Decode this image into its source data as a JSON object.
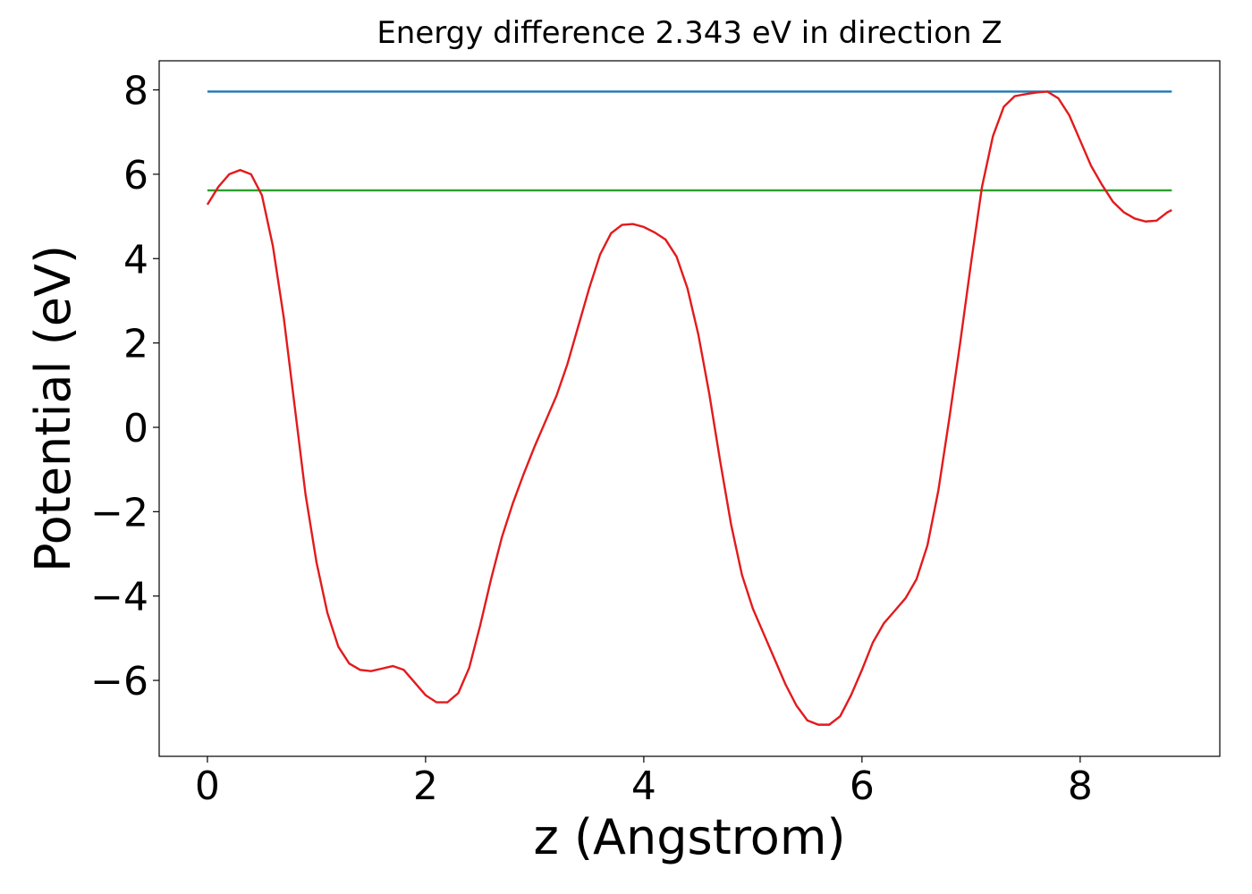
{
  "chart_data": {
    "type": "line",
    "title": "Energy difference 2.343 eV in direction Z",
    "x_label": "z (Angstrom)",
    "y_label": "Potential (eV)",
    "xlim": [
      -0.442,
      9.28
    ],
    "ylim": [
      -7.8,
      8.69
    ],
    "xticks": [
      0,
      2,
      4,
      6,
      8
    ],
    "yticks": [
      {
        "value": -6,
        "label": "−6"
      },
      {
        "value": -4,
        "label": "−4"
      },
      {
        "value": -2,
        "label": "−2"
      },
      0,
      2,
      4,
      6,
      8
    ],
    "series": [
      {
        "color": "#1f77b4",
        "x": [
          0,
          8.84
        ],
        "values": [
          7.96,
          7.96
        ]
      },
      {
        "color": "#2ca02c",
        "x": [
          0,
          8.84
        ],
        "values": [
          5.617,
          5.617
        ]
      },
      {
        "color": "#e31a1c",
        "x": [
          0,
          0.1,
          0.2,
          0.3,
          0.4,
          0.5,
          0.6,
          0.7,
          0.8,
          0.9,
          1.0,
          1.1,
          1.2,
          1.3,
          1.4,
          1.5,
          1.6,
          1.7,
          1.8,
          1.9,
          2.0,
          2.1,
          2.2,
          2.3,
          2.4,
          2.5,
          2.6,
          2.7,
          2.8,
          2.9,
          3.0,
          3.1,
          3.2,
          3.3,
          3.4,
          3.5,
          3.6,
          3.7,
          3.8,
          3.9,
          4.0,
          4.1,
          4.2,
          4.3,
          4.4,
          4.5,
          4.6,
          4.7,
          4.8,
          4.9,
          5.0,
          5.1,
          5.2,
          5.3,
          5.4,
          5.5,
          5.6,
          5.7,
          5.8,
          5.9,
          6.0,
          6.1,
          6.2,
          6.3,
          6.4,
          6.5,
          6.6,
          6.7,
          6.8,
          6.9,
          7.0,
          7.1,
          7.2,
          7.3,
          7.4,
          7.5,
          7.6,
          7.7,
          7.8,
          7.9,
          8.0,
          8.1,
          8.2,
          8.3,
          8.4,
          8.5,
          8.6,
          8.7,
          8.8,
          8.84
        ],
        "values": [
          5.28,
          5.7,
          6.0,
          6.1,
          6.0,
          5.5,
          4.3,
          2.6,
          0.5,
          -1.6,
          -3.2,
          -4.4,
          -5.2,
          -5.6,
          -5.75,
          -5.78,
          -5.72,
          -5.66,
          -5.75,
          -6.05,
          -6.35,
          -6.52,
          -6.52,
          -6.3,
          -5.7,
          -4.7,
          -3.6,
          -2.6,
          -1.8,
          -1.1,
          -0.45,
          0.15,
          0.75,
          1.5,
          2.4,
          3.3,
          4.1,
          4.6,
          4.8,
          4.82,
          4.75,
          4.62,
          4.45,
          4.05,
          3.3,
          2.2,
          0.8,
          -0.8,
          -2.3,
          -3.5,
          -4.3,
          -4.9,
          -5.5,
          -6.1,
          -6.6,
          -6.95,
          -7.05,
          -7.05,
          -6.85,
          -6.35,
          -5.75,
          -5.1,
          -4.65,
          -4.35,
          -4.05,
          -3.6,
          -2.8,
          -1.5,
          0.2,
          2.0,
          3.9,
          5.7,
          6.9,
          7.6,
          7.85,
          7.9,
          7.94,
          7.96,
          7.8,
          7.4,
          6.8,
          6.2,
          5.75,
          5.35,
          5.1,
          4.95,
          4.88,
          4.9,
          5.1,
          5.15
        ]
      }
    ]
  }
}
